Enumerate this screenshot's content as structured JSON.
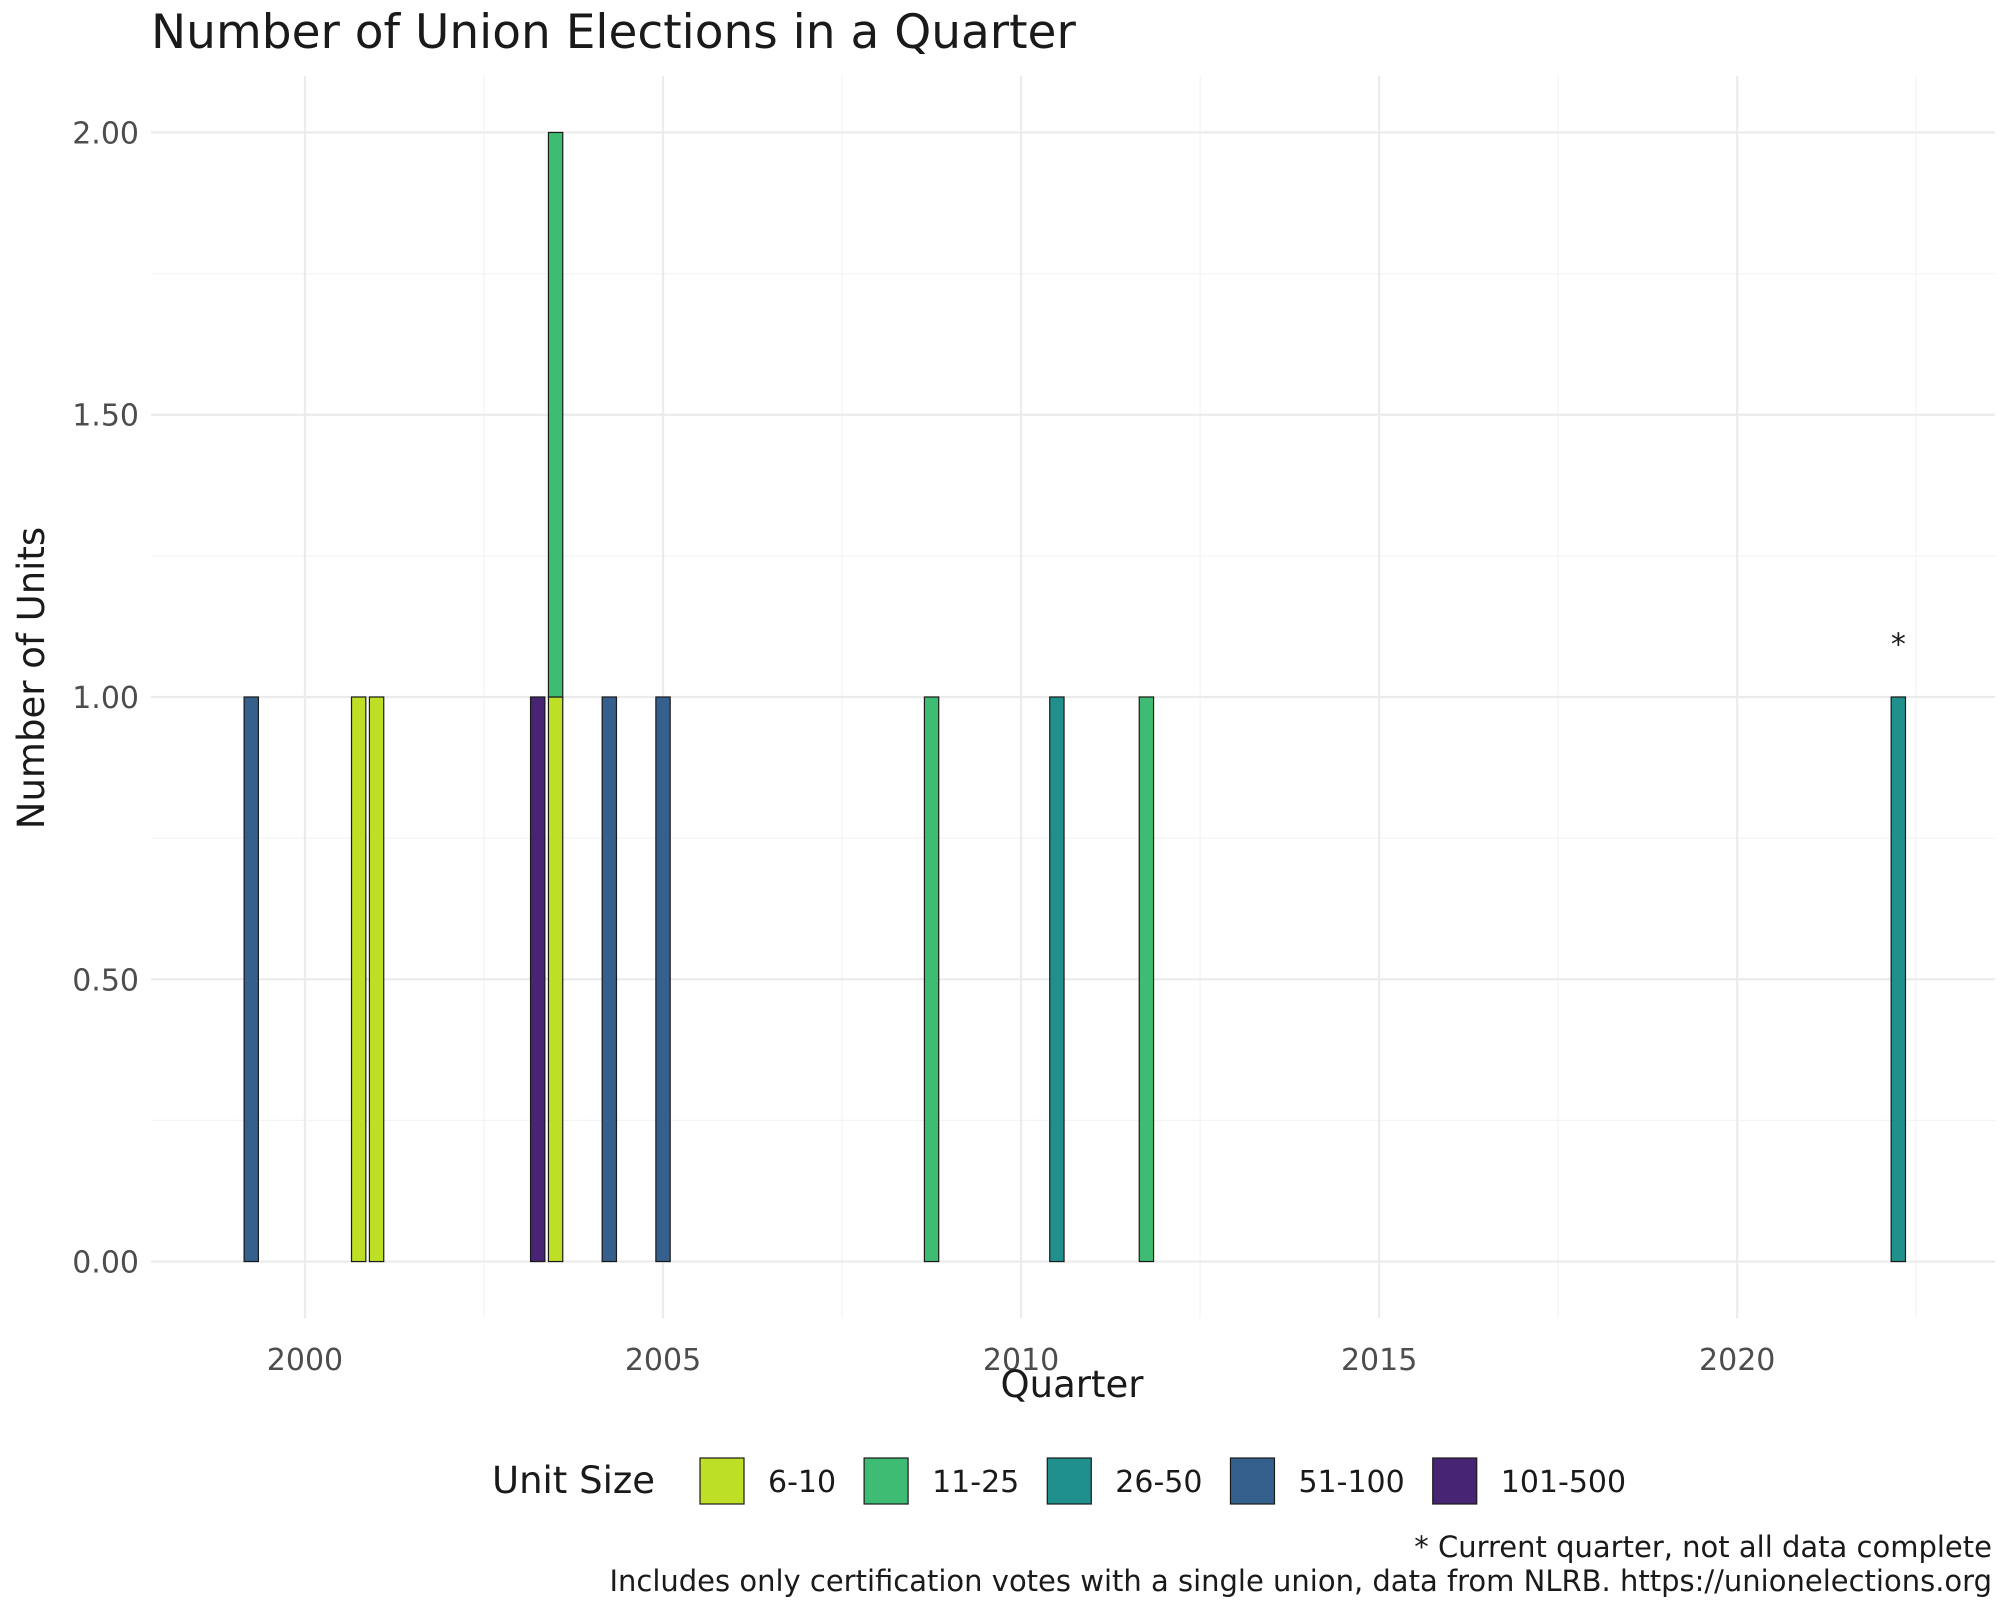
{
  "chart_data": {
    "type": "bar",
    "title": "Number of Union Elections in a Quarter",
    "xlabel": "Quarter",
    "ylabel": "Number of Units",
    "xlim": [
      1997.85,
      2023.6
    ],
    "ylim": [
      -0.1,
      2.1
    ],
    "x_ticks": [
      2000,
      2005,
      2010,
      2015,
      2020
    ],
    "x_tick_labels": [
      "2000",
      "2005",
      "2010",
      "2015",
      "2020"
    ],
    "y_ticks": [
      0,
      0.5,
      1,
      1.5,
      2
    ],
    "y_tick_labels": [
      "0.00",
      "0.50",
      "1.00",
      "1.50",
      "2.00"
    ],
    "grid": true,
    "legend": {
      "title": "Unit Size",
      "position": "bottom",
      "items": [
        {
          "label": "6-10",
          "color": "#bddf26"
        },
        {
          "label": "11-25",
          "color": "#3fbc73"
        },
        {
          "label": "26-50",
          "color": "#20908d"
        },
        {
          "label": "51-100",
          "color": "#355f8d"
        },
        {
          "label": "101-500",
          "color": "#482475"
        }
      ]
    },
    "bar_width_years": 0.2,
    "bars": [
      {
        "quarter": "1999 Q2",
        "x": 1999.25,
        "size": "51-100",
        "y0": 0,
        "y1": 1
      },
      {
        "quarter": "2000 Q4",
        "x": 2000.75,
        "size": "6-10",
        "y0": 0,
        "y1": 1
      },
      {
        "quarter": "2001 Q1",
        "x": 2001.0,
        "size": "6-10",
        "y0": 0,
        "y1": 1
      },
      {
        "quarter": "2003 Q2",
        "x": 2003.25,
        "size": "101-500",
        "y0": 0,
        "y1": 1
      },
      {
        "quarter": "2003 Q3",
        "x": 2003.5,
        "size": "6-10",
        "y0": 0,
        "y1": 1
      },
      {
        "quarter": "2003 Q3",
        "x": 2003.5,
        "size": "11-25",
        "y0": 1,
        "y1": 2
      },
      {
        "quarter": "2004 Q2",
        "x": 2004.25,
        "size": "51-100",
        "y0": 0,
        "y1": 1
      },
      {
        "quarter": "2005 Q1",
        "x": 2005.0,
        "size": "51-100",
        "y0": 0,
        "y1": 1
      },
      {
        "quarter": "2008 Q4",
        "x": 2008.75,
        "size": "11-25",
        "y0": 0,
        "y1": 1
      },
      {
        "quarter": "2010 Q3",
        "x": 2010.5,
        "size": "26-50",
        "y0": 0,
        "y1": 1
      },
      {
        "quarter": "2011 Q4",
        "x": 2011.75,
        "size": "11-25",
        "y0": 0,
        "y1": 1
      },
      {
        "quarter": "2022 Q2",
        "x": 2022.25,
        "size": "26-50",
        "y0": 0,
        "y1": 1
      }
    ],
    "annotations": [
      {
        "text": "*",
        "x": 2022.25,
        "y": 1.1
      }
    ],
    "captions": [
      "* Current quarter, not all data complete",
      "Includes only certification votes with a single union, data from NLRB. https://unionelections.org"
    ]
  }
}
